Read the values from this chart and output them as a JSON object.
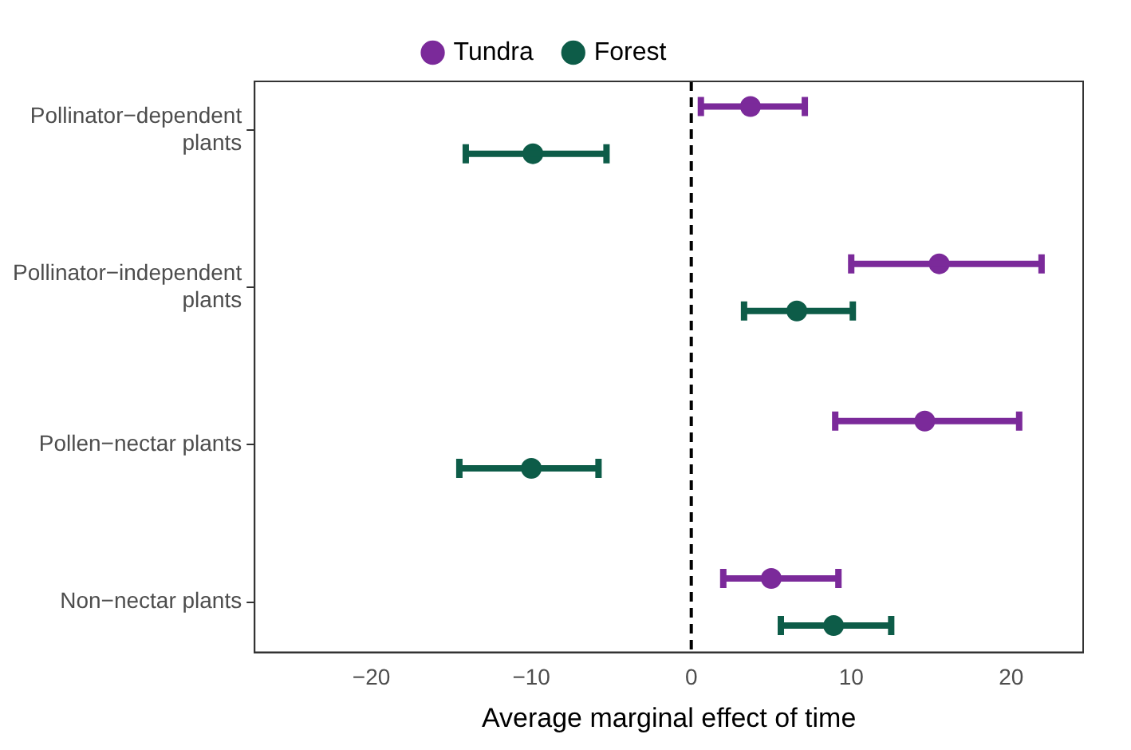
{
  "chart_data": {
    "type": "scatter",
    "orientation": "horizontal",
    "xlabel": "Average marginal effect of time",
    "categories": [
      "Pollinator−dependent plants",
      "Pollinator−independent plants",
      "Pollen−nectar plants",
      "Non−nectar plants"
    ],
    "series": [
      {
        "name": "Tundra",
        "color": "#7b2a9a",
        "values": [
          3.7,
          15.5,
          14.6,
          5.0
        ],
        "errors": [
          [
            0.6,
            7.1
          ],
          [
            10.0,
            21.9
          ],
          [
            9.0,
            20.5
          ],
          [
            2.0,
            9.2
          ]
        ]
      },
      {
        "name": "Forest",
        "color": "#0d5c48",
        "values": [
          -9.9,
          6.6,
          -10.0,
          8.9
        ],
        "errors": [
          [
            -14.1,
            -5.3
          ],
          [
            3.3,
            10.1
          ],
          [
            -14.5,
            -5.8
          ],
          [
            5.6,
            12.5
          ]
        ]
      }
    ],
    "xlim": [
      -27.3,
      24.5
    ],
    "xticks": [
      -20,
      -10,
      0,
      10,
      20
    ],
    "ref_lines": [
      {
        "axis": "x",
        "value": 0,
        "color": "#000000",
        "line_style": "dashed"
      }
    ],
    "grid": false,
    "legend": "top",
    "marker": "circle"
  }
}
